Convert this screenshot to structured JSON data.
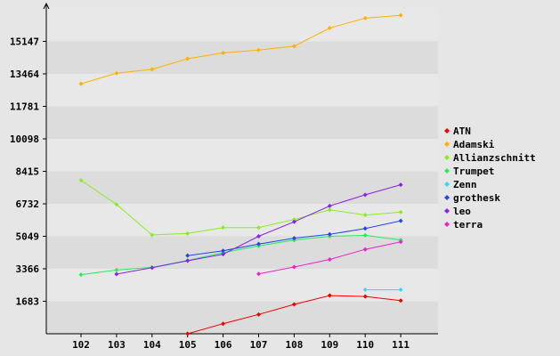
{
  "chart_data": {
    "type": "line",
    "x": [
      "102",
      "103",
      "104",
      "105",
      "106",
      "107",
      "108",
      "109",
      "110",
      "111"
    ],
    "y_ticks": [
      "1683",
      "3366",
      "5049",
      "6732",
      "8415",
      "10098",
      "11781",
      "13464",
      "15147"
    ],
    "ylim": [
      0,
      16830
    ],
    "title": "",
    "xlabel": "",
    "ylabel": "",
    "grid": "horizontal bands",
    "legend_position": "right",
    "series": [
      {
        "name": "ATN",
        "color": "#ee0000",
        "values": [
          null,
          null,
          null,
          0,
          520,
          1000,
          1520,
          1980,
          1930,
          1720
        ]
      },
      {
        "name": "Adamski",
        "color": "#ffb000",
        "values": [
          12950,
          13500,
          13700,
          14250,
          14550,
          14700,
          14900,
          15840,
          16350,
          16500
        ]
      },
      {
        "name": "Allianzschnitt",
        "color": "#88ee22",
        "values": [
          7950,
          6700,
          5120,
          5200,
          5500,
          5500,
          5920,
          6420,
          6150,
          6300
        ]
      },
      {
        "name": "Trumpet",
        "color": "#22ee55",
        "values": [
          3060,
          3300,
          3440,
          3800,
          4200,
          4550,
          4850,
          5050,
          5100,
          4860
        ]
      },
      {
        "name": "Zenn",
        "color": "#22e0ff",
        "values": [
          null,
          null,
          null,
          null,
          null,
          null,
          null,
          null,
          2280,
          2280
        ]
      },
      {
        "name": "grothesk",
        "color": "#2244ee",
        "values": [
          null,
          null,
          null,
          4050,
          4300,
          4650,
          4950,
          5150,
          5450,
          5850
        ]
      },
      {
        "name": "leo",
        "color": "#8822ee",
        "values": [
          null,
          3090,
          3420,
          3780,
          4120,
          5050,
          5800,
          6620,
          7200,
          7720
        ]
      },
      {
        "name": "terra",
        "color": "#ee22cc",
        "values": [
          null,
          null,
          null,
          null,
          null,
          3100,
          3460,
          3850,
          4370,
          4760
        ]
      }
    ]
  }
}
